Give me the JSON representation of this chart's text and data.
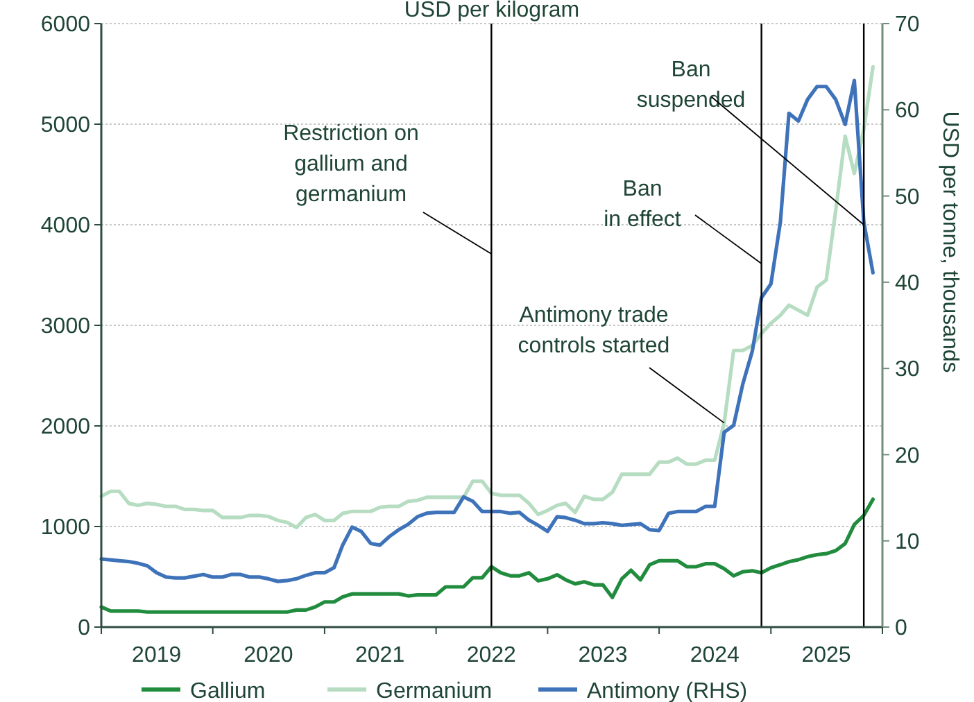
{
  "chart_data": {
    "type": "line",
    "title": "USD per kilogram",
    "y2label": "USD per tonne, thousands",
    "x": [
      "2019-01",
      "2019-02",
      "2019-03",
      "2019-04",
      "2019-05",
      "2019-06",
      "2019-07",
      "2019-08",
      "2019-09",
      "2019-10",
      "2019-11",
      "2019-12",
      "2020-01",
      "2020-02",
      "2020-03",
      "2020-04",
      "2020-05",
      "2020-06",
      "2020-07",
      "2020-08",
      "2020-09",
      "2020-10",
      "2020-11",
      "2020-12",
      "2021-01",
      "2021-02",
      "2021-03",
      "2021-04",
      "2021-05",
      "2021-06",
      "2021-07",
      "2021-08",
      "2021-09",
      "2021-10",
      "2021-11",
      "2021-12",
      "2022-01",
      "2022-02",
      "2022-03",
      "2022-04",
      "2022-05",
      "2022-06",
      "2022-07",
      "2022-08",
      "2022-09",
      "2022-10",
      "2022-11",
      "2022-12",
      "2023-01",
      "2023-02",
      "2023-03",
      "2023-04",
      "2023-05",
      "2023-06",
      "2023-07",
      "2023-08",
      "2023-09",
      "2023-10",
      "2023-11",
      "2023-12",
      "2024-01",
      "2024-02",
      "2024-03",
      "2024-04",
      "2024-05",
      "2024-06",
      "2024-07",
      "2024-08",
      "2024-09",
      "2024-10",
      "2024-11",
      "2024-12",
      "2025-01",
      "2025-02",
      "2025-03",
      "2025-04",
      "2025-05",
      "2025-06",
      "2025-07",
      "2025-08",
      "2025-09",
      "2025-10",
      "2025-11",
      "2025-12"
    ],
    "series": [
      {
        "name": "Gallium",
        "color": "#218c3e",
        "values": [
          200,
          160,
          160,
          160,
          160,
          150,
          150,
          150,
          150,
          150,
          150,
          150,
          150,
          150,
          150,
          150,
          150,
          150,
          150,
          150,
          150,
          170,
          170,
          200,
          250,
          250,
          300,
          330,
          330,
          330,
          330,
          330,
          330,
          310,
          320,
          320,
          320,
          400,
          400,
          400,
          490,
          490,
          600,
          540,
          510,
          510,
          540,
          460,
          480,
          520,
          470,
          430,
          450,
          420,
          420,
          295,
          480,
          565,
          470,
          620,
          660,
          660,
          660,
          600,
          600,
          630,
          630,
          580,
          510,
          550,
          560,
          540,
          590,
          620,
          650,
          670,
          700,
          720,
          730,
          760,
          830,
          1020,
          1110,
          1270
        ]
      },
      {
        "name": "Germanium",
        "color": "#b6dcc1",
        "values": [
          1300,
          1350,
          1350,
          1230,
          1210,
          1230,
          1220,
          1200,
          1200,
          1170,
          1170,
          1160,
          1160,
          1090,
          1090,
          1090,
          1110,
          1110,
          1100,
          1060,
          1040,
          990,
          1090,
          1120,
          1060,
          1060,
          1130,
          1150,
          1150,
          1150,
          1190,
          1200,
          1200,
          1250,
          1260,
          1290,
          1290,
          1290,
          1290,
          1290,
          1450,
          1450,
          1330,
          1310,
          1310,
          1310,
          1230,
          1120,
          1160,
          1210,
          1230,
          1140,
          1300,
          1270,
          1270,
          1340,
          1520,
          1520,
          1520,
          1520,
          1640,
          1640,
          1680,
          1620,
          1620,
          1660,
          1660,
          2030,
          2750,
          2750,
          2800,
          2920,
          3020,
          3100,
          3200,
          3150,
          3100,
          3380,
          3450,
          4140,
          4880,
          4510,
          4950,
          5570
        ]
      },
      {
        "name": "Antimony (RHS)",
        "color": "#3e72b9",
        "axis": "y2",
        "values": [
          7.9,
          7.8,
          7.7,
          7.6,
          7.4,
          7.1,
          6.3,
          5.8,
          5.7,
          5.7,
          5.9,
          6.1,
          5.8,
          5.8,
          6.1,
          6.1,
          5.8,
          5.8,
          5.6,
          5.3,
          5.4,
          5.6,
          6.0,
          6.3,
          6.3,
          6.9,
          9.5,
          11.6,
          11.1,
          9.7,
          9.5,
          10.5,
          11.3,
          11.9,
          12.8,
          13.2,
          13.3,
          13.3,
          13.3,
          15.1,
          14.6,
          13.4,
          13.4,
          13.4,
          13.2,
          13.3,
          12.4,
          11.8,
          11.1,
          12.8,
          12.7,
          12.4,
          12.0,
          12.0,
          12.1,
          12.0,
          11.8,
          11.9,
          12.0,
          11.3,
          11.2,
          13.2,
          13.4,
          13.4,
          13.4,
          14.0,
          14.0,
          22.6,
          23.4,
          28.2,
          32,
          38.2,
          39.8,
          47.0,
          59.6,
          58.7,
          61.2,
          62.7,
          62.7,
          61.2,
          58.3,
          63.4,
          47.0,
          41.1
        ]
      }
    ],
    "xlim": [
      "2019-01",
      "2026-01"
    ],
    "xticks": [
      {
        "value": "2019-01",
        "label": null
      },
      {
        "value": "2019-07",
        "label": "2019"
      },
      {
        "value": "2020-01",
        "label": null
      },
      {
        "value": "2020-07",
        "label": "2020"
      },
      {
        "value": "2021-01",
        "label": null
      },
      {
        "value": "2021-07",
        "label": "2021"
      },
      {
        "value": "2022-01",
        "label": null
      },
      {
        "value": "2022-07",
        "label": "2022"
      },
      {
        "value": "2023-01",
        "label": null
      },
      {
        "value": "2023-07",
        "label": "2023"
      },
      {
        "value": "2024-01",
        "label": null
      },
      {
        "value": "2024-07",
        "label": "2024"
      },
      {
        "value": "2025-01",
        "label": null
      },
      {
        "value": "2025-07",
        "label": "2025"
      },
      {
        "value": "2026-01",
        "label": null
      }
    ],
    "ylim": [
      0,
      6000
    ],
    "yticks": [
      0,
      1000,
      2000,
      3000,
      4000,
      5000,
      6000
    ],
    "y2lim": [
      0,
      70
    ],
    "y2ticks": [
      0,
      10,
      20,
      30,
      40,
      50,
      60,
      70
    ],
    "grid": "y",
    "legend": "bottom",
    "line_style": "solid",
    "ref_lines": [
      {
        "axis": "x",
        "value": "2022-07",
        "label": "Restriction on\ngallium and\ngermanium",
        "color": "#000000"
      },
      {
        "axis": "x",
        "value": "2024-12",
        "label": "Ban\nin effect",
        "color": "#000000"
      },
      {
        "axis": "x",
        "value": "2025-11",
        "label": "Ban\nsuspended",
        "color": "#000000"
      }
    ],
    "annotations": [
      {
        "text": "Antimony trade\ncontrols started",
        "x": "2024-08",
        "y": 2030
      }
    ]
  }
}
